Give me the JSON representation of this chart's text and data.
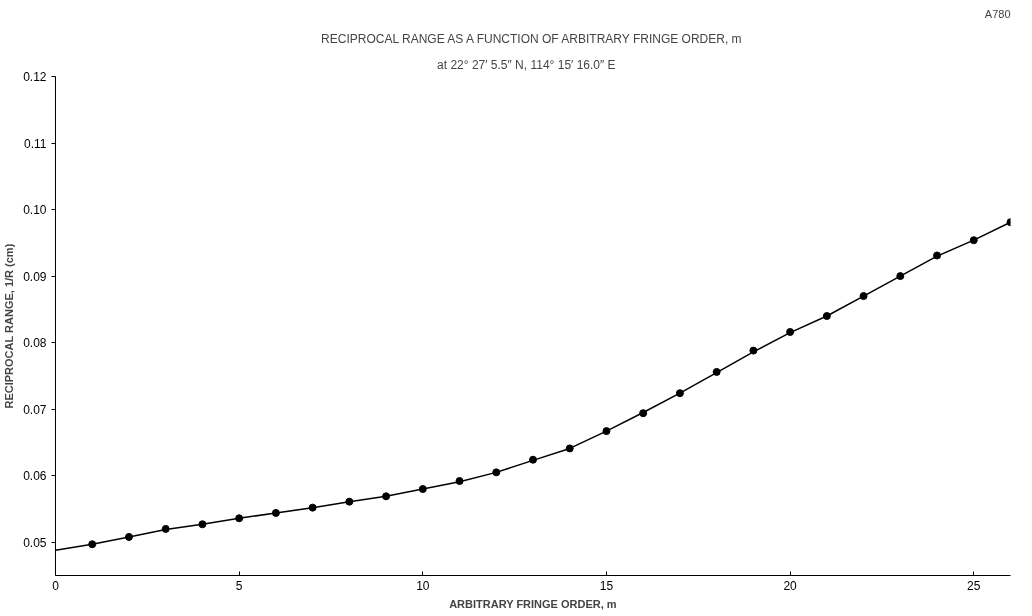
{
  "chart_data": {
    "type": "scatter",
    "title": "RECIPROCAL RANGE AS A FUNCTION OF ARBITRARY FRINGE ORDER, m",
    "subtitle": "at   22° 27′ 5.5″ N,   114° 15′ 16.0″ E",
    "xlabel": "ARBITRARY FRINGE ORDER, m",
    "ylabel": "RECIPROCAL RANGE, 1/R (cm)",
    "annotations": [
      "A780"
    ],
    "xlim": [
      0,
      26
    ],
    "ylim": [
      0.045,
      0.12
    ],
    "xticks": [
      0,
      5,
      10,
      15,
      20,
      25
    ],
    "yticks": [
      0.05,
      0.06,
      0.07,
      0.08,
      0.09,
      {
        "value": 0.1,
        "label": "0.10"
      },
      0.11,
      0.12
    ],
    "grid": false,
    "series": [
      {
        "type": "line",
        "color": "#000000",
        "marker": "none",
        "line_style": "solid",
        "x": [
          0,
          1,
          2,
          3,
          4,
          5,
          6,
          7,
          8,
          9,
          10,
          11,
          12,
          13,
          14,
          15,
          16,
          17,
          18,
          19,
          20,
          21,
          22,
          23,
          24,
          25,
          26
        ],
        "values": [
          0.0488,
          0.0497,
          0.0508,
          0.0519,
          0.0527,
          0.0536,
          0.0544,
          0.0552,
          0.0561,
          0.0569,
          0.058,
          0.0591,
          0.0605,
          0.0623,
          0.0641,
          0.0667,
          0.0695,
          0.0724,
          0.0755,
          0.0786,
          0.0815,
          0.084,
          0.087,
          0.09,
          0.093,
          0.0954,
          0.0981
        ]
      },
      {
        "color": "#000000",
        "marker": "circle",
        "x": [
          1,
          2,
          3,
          4,
          5,
          6,
          7,
          8,
          9,
          10,
          11,
          12,
          13,
          14,
          15,
          16,
          17,
          18,
          19,
          20,
          21,
          22,
          23,
          24,
          25,
          26
        ],
        "values": [
          0.0497,
          0.0508,
          0.052,
          0.0527,
          0.0536,
          0.0544,
          0.0552,
          0.0561,
          0.0569,
          0.058,
          0.0592,
          0.0605,
          0.0624,
          0.0641,
          0.0667,
          0.0694,
          0.0724,
          0.0756,
          0.0788,
          0.0816,
          0.084,
          0.087,
          0.09,
          0.0931,
          0.0954,
          0.0981
        ]
      }
    ]
  }
}
